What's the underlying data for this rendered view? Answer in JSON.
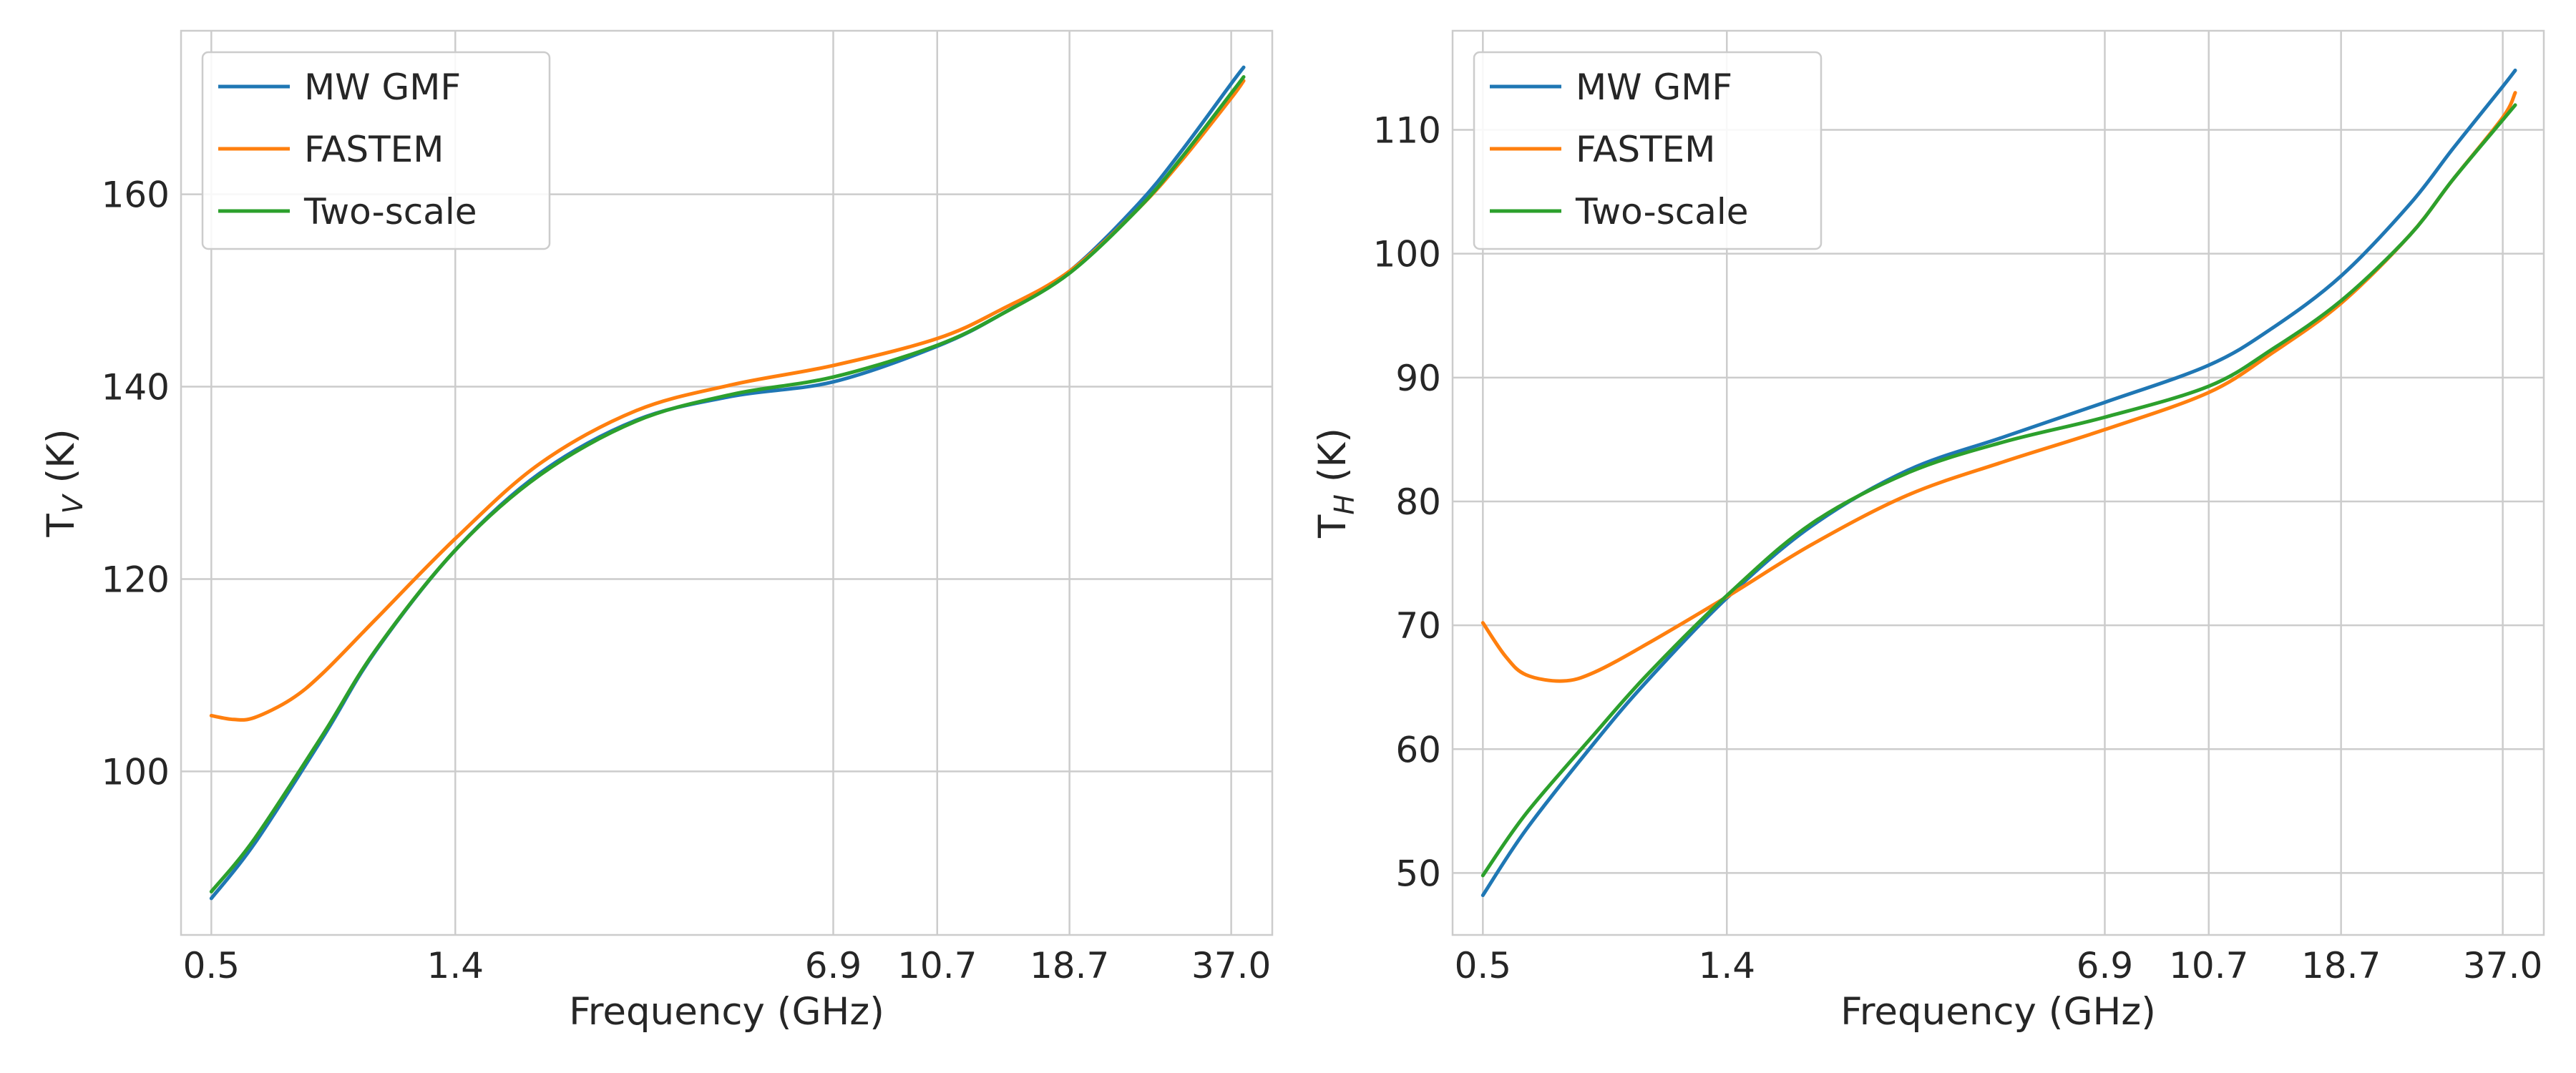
{
  "chart_data": [
    {
      "type": "line",
      "xlabel": "Frequency (GHz)",
      "ylabel_main": "T",
      "ylabel_sub": "V",
      "ylabel_unit": " (K)",
      "x_scale": "log",
      "x_ticks": [
        "0.5",
        "1.4",
        "6.9",
        "10.7",
        "18.7",
        "37.0"
      ],
      "xlim": [
        0.44,
        44
      ],
      "ylim": [
        83,
        177
      ],
      "y_ticks": [
        100,
        120,
        140,
        160
      ],
      "grid": true,
      "legend_position": "upper-left",
      "series": [
        {
          "name": "MW GMF",
          "color": "#1f77b4",
          "x": [
            0.5,
            0.6,
            0.8,
            1.0,
            1.4,
            2.0,
            3.0,
            4.5,
            6.9,
            10.7,
            14.0,
            18.7,
            25.0,
            30.0,
            37.0,
            39.0
          ],
          "y": [
            86.8,
            92.5,
            103.5,
            112.5,
            123.0,
            131.0,
            136.5,
            139.0,
            140.5,
            144.2,
            147.5,
            152.0,
            159.0,
            164.5,
            171.5,
            173.2
          ]
        },
        {
          "name": "FASTEM",
          "color": "#ff7f0e",
          "x": [
            0.5,
            0.55,
            0.6,
            0.7,
            0.8,
            1.0,
            1.4,
            2.0,
            3.0,
            4.5,
            6.9,
            10.7,
            14.0,
            18.7,
            25.0,
            30.0,
            37.0,
            39.0
          ],
          "y": [
            105.8,
            105.4,
            105.6,
            107.5,
            110.2,
            115.8,
            124.2,
            132.0,
            137.5,
            140.2,
            142.2,
            145.0,
            148.0,
            152.0,
            158.5,
            163.5,
            170.0,
            171.8
          ]
        },
        {
          "name": "Two-scale",
          "color": "#2ca02c",
          "x": [
            0.5,
            0.6,
            0.8,
            1.0,
            1.4,
            2.0,
            3.0,
            4.5,
            6.9,
            10.7,
            14.0,
            18.7,
            25.0,
            30.0,
            37.0,
            39.0
          ],
          "y": [
            87.5,
            93.0,
            103.8,
            112.6,
            123.0,
            130.8,
            136.4,
            139.2,
            141.0,
            144.3,
            147.5,
            151.8,
            158.5,
            163.8,
            170.5,
            172.2
          ]
        }
      ]
    },
    {
      "type": "line",
      "xlabel": "Frequency (GHz)",
      "ylabel_main": "T",
      "ylabel_sub": "H",
      "ylabel_unit": " (K)",
      "x_scale": "log",
      "x_ticks": [
        "0.5",
        "1.4",
        "6.9",
        "10.7",
        "18.7",
        "37.0"
      ],
      "xlim": [
        0.44,
        44
      ],
      "ylim": [
        45,
        118
      ],
      "y_ticks": [
        50,
        60,
        70,
        80,
        90,
        100,
        110
      ],
      "grid": true,
      "legend_position": "upper-left",
      "series": [
        {
          "name": "MW GMF",
          "color": "#1f77b4",
          "x": [
            0.5,
            0.6,
            0.8,
            1.0,
            1.4,
            2.0,
            3.0,
            4.5,
            6.9,
            10.7,
            14.0,
            18.7,
            25.0,
            30.0,
            37.0,
            39.0
          ],
          "y": [
            48.2,
            53.5,
            60.5,
            65.5,
            72.2,
            78.0,
            82.5,
            85.2,
            88.0,
            91.0,
            94.0,
            98.2,
            104.0,
            108.5,
            113.5,
            114.8
          ]
        },
        {
          "name": "FASTEM",
          "color": "#ff7f0e",
          "x": [
            0.5,
            0.55,
            0.6,
            0.7,
            0.8,
            1.0,
            1.4,
            2.0,
            3.0,
            4.5,
            6.9,
            10.7,
            14.0,
            18.7,
            25.0,
            30.0,
            37.0,
            39.0
          ],
          "y": [
            70.2,
            67.5,
            66.0,
            65.5,
            66.2,
            68.5,
            72.3,
            76.5,
            80.5,
            83.2,
            85.8,
            88.8,
            92.0,
            96.0,
            101.5,
            106.0,
            111.0,
            113.0
          ]
        },
        {
          "name": "Two-scale",
          "color": "#2ca02c",
          "x": [
            0.5,
            0.6,
            0.8,
            1.0,
            1.4,
            2.0,
            3.0,
            4.5,
            6.9,
            10.7,
            14.0,
            18.7,
            25.0,
            30.0,
            37.0,
            39.0
          ],
          "y": [
            49.8,
            54.8,
            61.2,
            66.0,
            72.4,
            78.2,
            82.3,
            84.8,
            86.8,
            89.3,
            92.3,
            96.2,
            101.5,
            106.0,
            110.8,
            112.0
          ]
        }
      ]
    }
  ]
}
